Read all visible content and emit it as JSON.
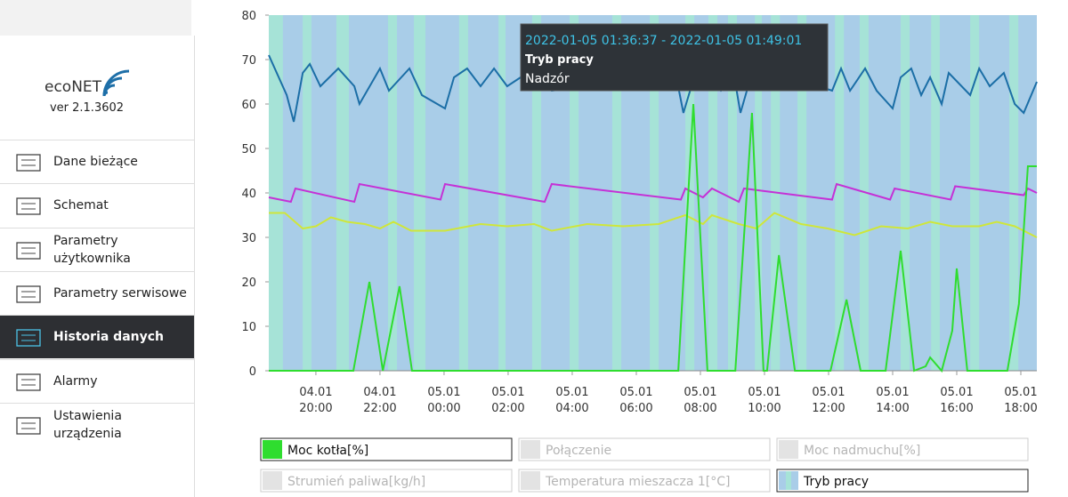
{
  "sidebar": {
    "logo": "ecoNET",
    "version": "ver 2.1.3602",
    "menu": [
      "Dane bieżące",
      "Schemat",
      "Parametry użytkownika",
      "Parametry serwisowe",
      "Historia danych",
      "Alarmy",
      "Ustawienia urządzenia"
    ],
    "active": 4
  },
  "chart_data": {
    "type": "line",
    "xlim": [
      18.53,
      42.5
    ],
    "xticks": [
      {
        "value": 20,
        "label": "04.01 20:00"
      },
      {
        "value": 22,
        "label": "04.01 22:00"
      },
      {
        "value": 24,
        "label": "05.01 00:00"
      },
      {
        "value": 26,
        "label": "05.01 02:00"
      },
      {
        "value": 28,
        "label": "05.01 04:00"
      },
      {
        "value": 30,
        "label": "05.01 06:00"
      },
      {
        "value": 32,
        "label": "05.01 08:00"
      },
      {
        "value": 34,
        "label": "05.01 10:00"
      },
      {
        "value": 36,
        "label": "05.01 12:00"
      },
      {
        "value": 38,
        "label": "05.01 14:00"
      },
      {
        "value": 40,
        "label": "05.01 16:00"
      },
      {
        "value": 42,
        "label": "05.01 18:00"
      }
    ],
    "ylim": [
      0,
      80
    ],
    "yticks": [
      0,
      10,
      20,
      30,
      40,
      50,
      60,
      70,
      80
    ],
    "series": [
      {
        "name": "Moc kotła[%]",
        "color": "#2fdd2f",
        "visible": true,
        "x": [
          18.53,
          21.17,
          21.67,
          22.09,
          22.61,
          23.0,
          31.31,
          31.78,
          32.22,
          33.09,
          33.61,
          33.97,
          34.08,
          34.45,
          34.95,
          36.06,
          36.56,
          37.0,
          37.78,
          38.25,
          38.67,
          39.03,
          39.17,
          39.53,
          39.86,
          40.0,
          40.33,
          41.58,
          41.94,
          42.22,
          42.5
        ],
        "values": [
          0,
          0,
          20,
          0,
          19,
          0,
          0,
          60,
          0,
          0,
          58,
          0,
          0,
          26,
          0,
          0,
          16,
          0,
          0,
          27,
          0,
          1,
          3,
          0,
          9,
          23,
          0,
          0,
          15,
          46,
          46
        ]
      },
      {
        "name": "Połączenie",
        "visible": false
      },
      {
        "name": "Moc nadmuchu[%]",
        "visible": false
      },
      {
        "name": "Strumień paliwa[kg/h]",
        "visible": false
      },
      {
        "name": "Temperatura mieszacza 1[°C]",
        "visible": false
      },
      {
        "name": "Tryb pracy",
        "color": "#a9cde8",
        "band_color": "#a6e3d7",
        "visible": true,
        "bands": [
          [
            18.53,
            18.97
          ],
          [
            19.59,
            19.86
          ],
          [
            20.64,
            21.03
          ],
          [
            22.25,
            22.53
          ],
          [
            23.06,
            23.42
          ],
          [
            24.47,
            24.75
          ],
          [
            25.7,
            25.92
          ],
          [
            26.75,
            27.03
          ],
          [
            27.92,
            28.2
          ],
          [
            29.25,
            29.53
          ],
          [
            30.42,
            30.7
          ],
          [
            31.53,
            31.81
          ],
          [
            32.25,
            32.53
          ],
          [
            32.86,
            33.14
          ],
          [
            33.7,
            33.92
          ],
          [
            34.2,
            34.48
          ],
          [
            35.03,
            35.31
          ],
          [
            36.2,
            36.48
          ],
          [
            36.97,
            37.25
          ],
          [
            38.25,
            38.53
          ],
          [
            39.2,
            39.47
          ],
          [
            40.42,
            40.7
          ],
          [
            41.64,
            41.92
          ]
        ]
      },
      {
        "color": "#1b6ea6",
        "x": [
          18.53,
          19.09,
          19.31,
          19.59,
          19.81,
          20.14,
          20.7,
          21.2,
          21.36,
          22.0,
          22.28,
          22.92,
          23.31,
          24.03,
          24.31,
          24.72,
          25.14,
          25.56,
          25.97,
          26.81,
          27.36,
          28.47,
          29.59,
          30.7,
          31.25,
          31.47,
          31.72,
          32.22,
          32.64,
          33.06,
          33.25,
          33.53,
          34.59,
          35.7,
          36.11,
          36.39,
          36.67,
          37.14,
          37.5,
          38.0,
          38.25,
          38.58,
          38.89,
          39.17,
          39.53,
          39.75,
          40.42,
          40.7,
          41.03,
          41.47,
          41.81,
          42.09,
          42.5
        ],
        "values": [
          71,
          62,
          56,
          67,
          69,
          64,
          68,
          64,
          60,
          68,
          63,
          68,
          62,
          59,
          66,
          68,
          64,
          68,
          64,
          68,
          63,
          64,
          64,
          64,
          66,
          58,
          64,
          66,
          63,
          66,
          58,
          65,
          64,
          64,
          63,
          68,
          63,
          68,
          63,
          59,
          66,
          68,
          62,
          66,
          60,
          67,
          62,
          68,
          64,
          67,
          60,
          58,
          65
        ]
      },
      {
        "color": "#c531d6",
        "x": [
          18.53,
          19.22,
          19.36,
          21.2,
          21.36,
          23.89,
          24.03,
          27.14,
          27.36,
          31.39,
          31.53,
          32.08,
          32.36,
          33.2,
          33.36,
          36.11,
          36.25,
          37.92,
          38.06,
          39.81,
          39.95,
          42.09,
          42.22,
          42.5
        ],
        "values": [
          39,
          38,
          41,
          38,
          42,
          38.5,
          42,
          38,
          42,
          38.5,
          41,
          39,
          41,
          38,
          41,
          38.5,
          42,
          38.5,
          41,
          38.5,
          41.5,
          39.5,
          41,
          40
        ]
      },
      {
        "color": "#cfe63a",
        "x": [
          18.53,
          19.03,
          19.59,
          20.0,
          20.47,
          20.97,
          21.53,
          22.0,
          22.42,
          22.97,
          24.03,
          25.14,
          25.97,
          26.81,
          27.36,
          28.47,
          29.59,
          30.7,
          31.53,
          32.08,
          32.36,
          33.2,
          33.75,
          34.31,
          35.14,
          35.97,
          36.81,
          37.64,
          38.47,
          39.17,
          39.86,
          40.7,
          41.25,
          41.81,
          42.5
        ],
        "values": [
          35.5,
          35.5,
          32,
          32.5,
          34.5,
          33.5,
          33,
          32,
          33.5,
          31.5,
          31.5,
          33,
          32.5,
          33,
          31.5,
          33,
          32.5,
          33,
          35,
          33,
          35,
          33,
          32,
          35.5,
          33,
          32,
          30.5,
          32.5,
          32,
          33.5,
          32.5,
          32.5,
          33.5,
          32.5,
          30
        ]
      }
    ],
    "tooltip": {
      "title": "2022-01-05 01:36:37 - 2022-01-05 01:49:01",
      "series": "Tryb pracy",
      "value": "Nadzór"
    }
  }
}
